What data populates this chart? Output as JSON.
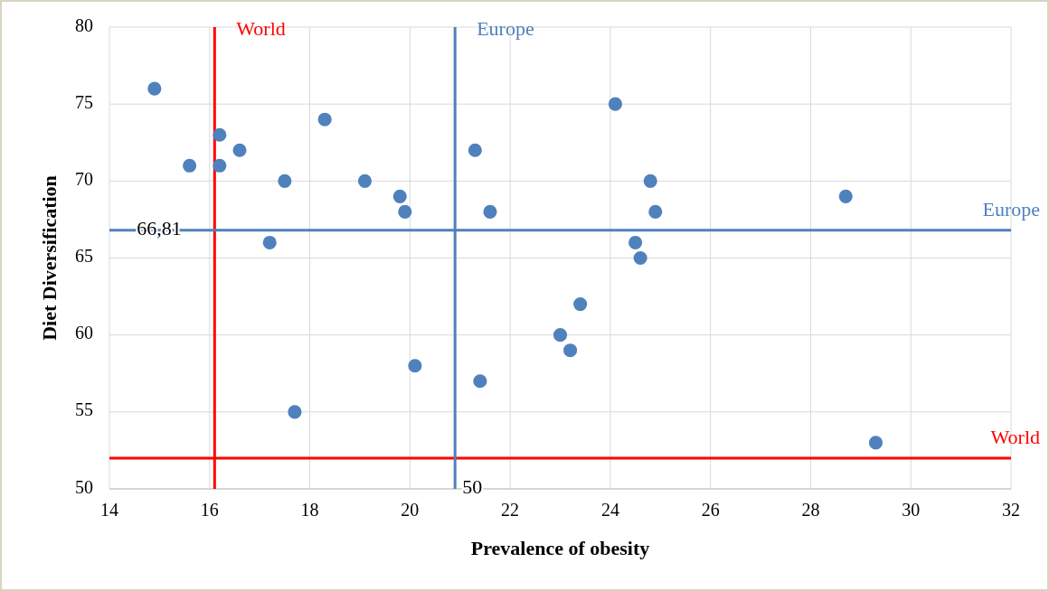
{
  "chart_data": {
    "type": "scatter",
    "xlabel": "Prevalence of obesity",
    "ylabel": "Diet Diversification",
    "xlim": [
      14,
      32
    ],
    "xticks": [
      14,
      16,
      18,
      20,
      22,
      24,
      26,
      28,
      30,
      32
    ],
    "ylim": [
      50,
      80
    ],
    "yticks": [
      50,
      55,
      60,
      65,
      70,
      75,
      80
    ],
    "grid": true,
    "marker": "circle",
    "series": [
      {
        "color": "#4f81bd",
        "x": [
          14.9,
          15.6,
          16.2,
          16.2,
          16.6,
          17.2,
          17.5,
          17.7,
          18.3,
          19.1,
          19.8,
          19.9,
          20.1,
          21.3,
          21.4,
          21.6,
          23.0,
          23.2,
          23.4,
          24.1,
          24.5,
          24.6,
          24.8,
          24.9,
          28.7,
          29.3
        ],
        "values": [
          76,
          71,
          73,
          71,
          72,
          66,
          70,
          55,
          74,
          70,
          69,
          68,
          58,
          72,
          57,
          68,
          60,
          59,
          62,
          75,
          66,
          65,
          70,
          68,
          69,
          53
        ]
      }
    ],
    "ref_lines": [
      {
        "axis": "x",
        "value": 16.1,
        "label": "World",
        "color": "#ff0000"
      },
      {
        "axis": "y",
        "value": 52,
        "label": "World",
        "color": "#ff0000"
      },
      {
        "axis": "x",
        "value": 20.9,
        "label": "Europe",
        "color": "#4f81bd"
      },
      {
        "axis": "y",
        "value": 66.81,
        "label": "Europe",
        "color": "#4f81bd"
      }
    ],
    "annotations": [
      {
        "text": "66,81",
        "x": 14.4,
        "y": 66.81
      },
      {
        "text": "50",
        "x": 20.9,
        "y": 50
      }
    ]
  }
}
